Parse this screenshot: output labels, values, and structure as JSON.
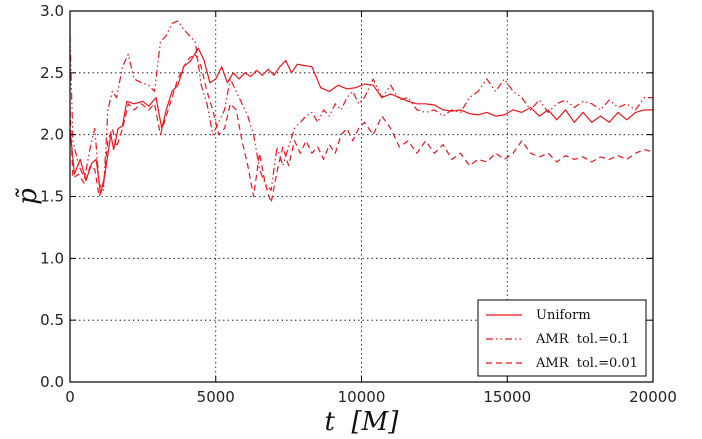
{
  "chart_data": {
    "type": "line",
    "xlabel": "t  [M]",
    "ylabel": "p̃",
    "xlim": [
      0,
      20000
    ],
    "ylim": [
      0.0,
      3.0
    ],
    "xticks": [
      "0",
      "5000",
      "10000",
      "15000",
      "20000"
    ],
    "yticks": [
      "0.0",
      "0.5",
      "1.0",
      "1.5",
      "2.0",
      "2.5",
      "3.0"
    ],
    "grid": true,
    "legend_position": "bottom-right",
    "line_color": "#e8161b",
    "series": [
      {
        "name": "Uniform",
        "style": "solid",
        "points": [
          [
            0,
            2.05
          ],
          [
            150,
            1.68
          ],
          [
            350,
            1.8
          ],
          [
            550,
            1.63
          ],
          [
            750,
            1.77
          ],
          [
            900,
            1.8
          ],
          [
            1050,
            1.52
          ],
          [
            1200,
            1.68
          ],
          [
            1400,
            2.0
          ],
          [
            1500,
            1.88
          ],
          [
            1650,
            2.05
          ],
          [
            1800,
            2.07
          ],
          [
            1950,
            2.27
          ],
          [
            2200,
            2.25
          ],
          [
            2500,
            2.27
          ],
          [
            2700,
            2.23
          ],
          [
            2950,
            2.3
          ],
          [
            3150,
            2.05
          ],
          [
            3300,
            2.2
          ],
          [
            3500,
            2.35
          ],
          [
            3700,
            2.4
          ],
          [
            3900,
            2.55
          ],
          [
            4150,
            2.6
          ],
          [
            4400,
            2.7
          ],
          [
            4600,
            2.6
          ],
          [
            4800,
            2.42
          ],
          [
            5000,
            2.45
          ],
          [
            5200,
            2.55
          ],
          [
            5400,
            2.42
          ],
          [
            5600,
            2.5
          ],
          [
            5800,
            2.45
          ],
          [
            6000,
            2.5
          ],
          [
            6200,
            2.47
          ],
          [
            6400,
            2.52
          ],
          [
            6600,
            2.48
          ],
          [
            6800,
            2.53
          ],
          [
            7000,
            2.48
          ],
          [
            7200,
            2.55
          ],
          [
            7400,
            2.6
          ],
          [
            7600,
            2.5
          ],
          [
            7800,
            2.57
          ],
          [
            8000,
            2.56
          ],
          [
            8300,
            2.55
          ],
          [
            8600,
            2.38
          ],
          [
            8900,
            2.35
          ],
          [
            9200,
            2.4
          ],
          [
            9500,
            2.37
          ],
          [
            9800,
            2.38
          ],
          [
            10100,
            2.41
          ],
          [
            10400,
            2.4
          ],
          [
            10700,
            2.3
          ],
          [
            11000,
            2.33
          ],
          [
            11300,
            2.3
          ],
          [
            11600,
            2.27
          ],
          [
            11900,
            2.25
          ],
          [
            12200,
            2.25
          ],
          [
            12500,
            2.24
          ],
          [
            12800,
            2.2
          ],
          [
            13100,
            2.19
          ],
          [
            13400,
            2.2
          ],
          [
            13700,
            2.17
          ],
          [
            14000,
            2.16
          ],
          [
            14300,
            2.18
          ],
          [
            14600,
            2.15
          ],
          [
            14900,
            2.16
          ],
          [
            15200,
            2.2
          ],
          [
            15500,
            2.18
          ],
          [
            15800,
            2.22
          ],
          [
            16100,
            2.15
          ],
          [
            16400,
            2.2
          ],
          [
            16700,
            2.12
          ],
          [
            17000,
            2.2
          ],
          [
            17300,
            2.1
          ],
          [
            17600,
            2.18
          ],
          [
            17900,
            2.1
          ],
          [
            18200,
            2.15
          ],
          [
            18500,
            2.1
          ],
          [
            18800,
            2.18
          ],
          [
            19100,
            2.12
          ],
          [
            19400,
            2.18
          ],
          [
            19700,
            2.2
          ],
          [
            20000,
            2.2
          ]
        ]
      },
      {
        "name": "AMR  tol.=0.1",
        "style": "dashdot",
        "points": [
          [
            0,
            2.8
          ],
          [
            100,
            1.95
          ],
          [
            300,
            1.75
          ],
          [
            500,
            1.65
          ],
          [
            700,
            1.9
          ],
          [
            850,
            2.05
          ],
          [
            1000,
            1.6
          ],
          [
            1150,
            1.55
          ],
          [
            1300,
            2.2
          ],
          [
            1450,
            2.35
          ],
          [
            1600,
            2.3
          ],
          [
            1800,
            2.55
          ],
          [
            2000,
            2.65
          ],
          [
            2200,
            2.45
          ],
          [
            2450,
            2.42
          ],
          [
            2700,
            2.4
          ],
          [
            2900,
            2.35
          ],
          [
            3100,
            2.75
          ],
          [
            3300,
            2.8
          ],
          [
            3500,
            2.9
          ],
          [
            3700,
            2.92
          ],
          [
            3900,
            2.85
          ],
          [
            4100,
            2.8
          ],
          [
            4300,
            2.75
          ],
          [
            4500,
            2.4
          ],
          [
            4700,
            2.25
          ],
          [
            4900,
            2.0
          ],
          [
            5100,
            2.1
          ],
          [
            5300,
            2.2
          ],
          [
            5500,
            2.45
          ],
          [
            5700,
            2.35
          ],
          [
            5900,
            2.25
          ],
          [
            6100,
            2.15
          ],
          [
            6300,
            2.0
          ],
          [
            6500,
            1.72
          ],
          [
            6700,
            1.6
          ],
          [
            6900,
            1.55
          ],
          [
            7100,
            1.9
          ],
          [
            7300,
            1.75
          ],
          [
            7500,
            1.9
          ],
          [
            7700,
            2.05
          ],
          [
            7900,
            2.1
          ],
          [
            8100,
            2.15
          ],
          [
            8300,
            2.18
          ],
          [
            8500,
            2.1
          ],
          [
            8700,
            2.2
          ],
          [
            8900,
            2.15
          ],
          [
            9100,
            2.25
          ],
          [
            9300,
            2.2
          ],
          [
            9500,
            2.3
          ],
          [
            9700,
            2.35
          ],
          [
            9900,
            2.25
          ],
          [
            10100,
            2.3
          ],
          [
            10400,
            2.45
          ],
          [
            10700,
            2.3
          ],
          [
            11000,
            2.4
          ],
          [
            11300,
            2.28
          ],
          [
            11600,
            2.3
          ],
          [
            11900,
            2.2
          ],
          [
            12200,
            2.18
          ],
          [
            12500,
            2.2
          ],
          [
            12800,
            2.15
          ],
          [
            13100,
            2.2
          ],
          [
            13400,
            2.18
          ],
          [
            13700,
            2.3
          ],
          [
            14000,
            2.35
          ],
          [
            14300,
            2.45
          ],
          [
            14600,
            2.35
          ],
          [
            14900,
            2.45
          ],
          [
            15200,
            2.35
          ],
          [
            15500,
            2.3
          ],
          [
            15800,
            2.2
          ],
          [
            16100,
            2.28
          ],
          [
            16400,
            2.18
          ],
          [
            16700,
            2.25
          ],
          [
            17000,
            2.28
          ],
          [
            17300,
            2.22
          ],
          [
            17600,
            2.27
          ],
          [
            17900,
            2.25
          ],
          [
            18200,
            2.2
          ],
          [
            18500,
            2.28
          ],
          [
            18800,
            2.22
          ],
          [
            19100,
            2.25
          ],
          [
            19400,
            2.2
          ],
          [
            19700,
            2.3
          ],
          [
            20000,
            2.3
          ]
        ]
      },
      {
        "name": "AMR  tol.=0.01",
        "style": "dashed",
        "points": [
          [
            0,
            2.2
          ],
          [
            100,
            1.65
          ],
          [
            300,
            1.68
          ],
          [
            500,
            1.6
          ],
          [
            700,
            1.75
          ],
          [
            850,
            1.72
          ],
          [
            1000,
            1.5
          ],
          [
            1150,
            1.6
          ],
          [
            1300,
            1.95
          ],
          [
            1450,
            2.05
          ],
          [
            1600,
            1.9
          ],
          [
            1800,
            2.05
          ],
          [
            2000,
            2.25
          ],
          [
            2200,
            2.2
          ],
          [
            2450,
            2.25
          ],
          [
            2700,
            2.2
          ],
          [
            2900,
            2.25
          ],
          [
            3100,
            2.0
          ],
          [
            3300,
            2.15
          ],
          [
            3500,
            2.3
          ],
          [
            3700,
            2.45
          ],
          [
            3900,
            2.55
          ],
          [
            4100,
            2.62
          ],
          [
            4300,
            2.65
          ],
          [
            4500,
            2.55
          ],
          [
            4700,
            2.35
          ],
          [
            4900,
            2.2
          ],
          [
            5100,
            2.0
          ],
          [
            5300,
            2.05
          ],
          [
            5500,
            2.25
          ],
          [
            5700,
            2.2
          ],
          [
            5900,
            1.95
          ],
          [
            6100,
            1.75
          ],
          [
            6300,
            1.5
          ],
          [
            6500,
            1.85
          ],
          [
            6700,
            1.6
          ],
          [
            6900,
            1.45
          ],
          [
            7100,
            1.7
          ],
          [
            7300,
            1.9
          ],
          [
            7500,
            1.75
          ],
          [
            7700,
            1.95
          ],
          [
            7900,
            1.85
          ],
          [
            8100,
            1.95
          ],
          [
            8300,
            1.85
          ],
          [
            8500,
            1.9
          ],
          [
            8700,
            1.8
          ],
          [
            8900,
            1.92
          ],
          [
            9100,
            1.85
          ],
          [
            9300,
            2.0
          ],
          [
            9500,
            2.05
          ],
          [
            9700,
            1.95
          ],
          [
            9900,
            2.05
          ],
          [
            10100,
            2.1
          ],
          [
            10400,
            2.0
          ],
          [
            10700,
            2.15
          ],
          [
            11000,
            2.05
          ],
          [
            11300,
            1.9
          ],
          [
            11600,
            1.95
          ],
          [
            11900,
            1.85
          ],
          [
            12200,
            1.95
          ],
          [
            12500,
            1.85
          ],
          [
            12800,
            1.92
          ],
          [
            13100,
            1.8
          ],
          [
            13400,
            1.85
          ],
          [
            13700,
            1.75
          ],
          [
            14000,
            1.8
          ],
          [
            14300,
            1.78
          ],
          [
            14600,
            1.85
          ],
          [
            14900,
            1.8
          ],
          [
            15200,
            1.85
          ],
          [
            15500,
            1.95
          ],
          [
            15800,
            1.85
          ],
          [
            16100,
            1.82
          ],
          [
            16400,
            1.85
          ],
          [
            16700,
            1.78
          ],
          [
            17000,
            1.83
          ],
          [
            17300,
            1.8
          ],
          [
            17600,
            1.82
          ],
          [
            17900,
            1.78
          ],
          [
            18200,
            1.82
          ],
          [
            18500,
            1.8
          ],
          [
            18800,
            1.83
          ],
          [
            19100,
            1.8
          ],
          [
            19400,
            1.85
          ],
          [
            19700,
            1.88
          ],
          [
            20000,
            1.86
          ]
        ]
      }
    ]
  }
}
